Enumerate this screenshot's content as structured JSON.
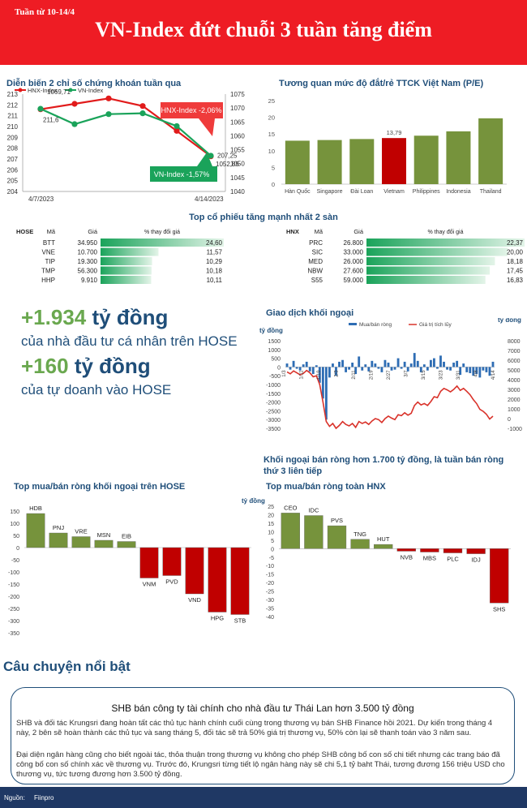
{
  "header": {
    "week": "Tuần từ 10-14/4",
    "title": "VN-Index đứt chuỗi 3 tuần tăng điểm",
    "bg": "#ee1c24"
  },
  "index_chart": {
    "title": "Diễn biến 2 chỉ số chứng khoán tuần qua",
    "legend": [
      "HNX-Index",
      "VN-Index"
    ],
    "colors": [
      "#e11b1b",
      "#1aa35a"
    ],
    "callout_hnx": "HNX-Index -2,06%",
    "callout_vn": "VN-Index -1,57%",
    "date_start": "4/7/2023",
    "date_end": "4/14/2023"
  },
  "pe_chart": {
    "title": "Tương quan mức độ đắt/rẻ TTCK Việt Nam (P/E)",
    "vietnam_label": "13,79"
  },
  "top_stocks": {
    "title": "Top cổ phiếu tăng mạnh nhất 2 sàn",
    "hose": {
      "exchange": "HOSE",
      "col_code": "Mã",
      "col_price": "Giá",
      "col_change": "% thay đổi giá",
      "rows": [
        {
          "code": "BTT",
          "price": "34.950",
          "change": "24,60",
          "pct": 24.6
        },
        {
          "code": "VNE",
          "price": "10.700",
          "change": "11,57",
          "pct": 11.57
        },
        {
          "code": "TIP",
          "price": "19.300",
          "change": "10,29",
          "pct": 10.29
        },
        {
          "code": "TMP",
          "price": "56.300",
          "change": "10,18",
          "pct": 10.18
        },
        {
          "code": "HHP",
          "price": "9.910",
          "change": "10,11",
          "pct": 10.11
        }
      ]
    },
    "hnx": {
      "exchange": "HNX",
      "col_code": "Mã",
      "col_price": "Giá",
      "col_change": "% thay đổi giá",
      "rows": [
        {
          "code": "PRC",
          "price": "26.800",
          "change": "22,37",
          "pct": 22.37
        },
        {
          "code": "SIC",
          "price": "33.000",
          "change": "20,00",
          "pct": 20.0
        },
        {
          "code": "MED",
          "price": "26.000",
          "change": "18,18",
          "pct": 18.18
        },
        {
          "code": "NBW",
          "price": "27.600",
          "change": "17,45",
          "pct": 17.45
        },
        {
          "code": "S55",
          "price": "59.000",
          "change": "16,83",
          "pct": 16.83
        }
      ]
    }
  },
  "highlights": {
    "amount1": "+1.934",
    "unit1": "tỷ đồng",
    "desc1": "của nhà đầu tư cá nhân trên HOSE",
    "amount2": "+160",
    "unit2": "tỷ đồng",
    "desc2": "của tự doanh vào HOSE"
  },
  "foreign_chart": {
    "title": "Giao dịch khối ngoại",
    "unit_left": "tỷ đồng",
    "unit_right": "tỷ đồng",
    "legend_bar": "Mua/bán ròng",
    "legend_line": "Giá trị tích lũy",
    "bar_color": "#2e6db4",
    "line_color": "#d9322a",
    "caption": "Khối ngoại bán ròng hơn 1.700 tỷ đồng, là tuần bán ròng thứ 3 liên tiếp"
  },
  "hose_foreign": {
    "title": "Top mua/bán ròng khối ngoại trên HOSE"
  },
  "hnx_foreign": {
    "title": "Top mua/bán ròng toàn HNX",
    "unit": "tỷ đồng"
  },
  "story": {
    "heading": "Câu chuyện nổi bật",
    "title": "SHB bán công ty tài chính cho nhà đầu tư Thái Lan hơn 3.500 tỷ đồng",
    "p1": "SHB và đối tác Krungsri đang hoàn tất các thủ tục hành chính cuối cùng trong thương vụ bán SHB Finance hồi 2021. Dự kiến trong tháng 4 này, 2 bên sẽ hoàn thành các thủ tục và sang tháng 5, đối tác sẽ trả 50% giá trị thương vụ, 50% còn lại sẽ thanh toán vào 3 năm sau.",
    "p2": "Đại diện ngân hàng cũng cho biết ngoài tác, thỏa thuận trong thương vụ không cho phép SHB công bố con số chi tiết nhưng các trang báo đã công bố con số chính xác về thương vụ. Trước đó, Krungsri từng tiết lộ ngân hàng này sẽ chi 5,1 tỷ baht Thái, tương đương 156 triệu USD cho thương vụ, tức tương đương hơn 3.500 tỷ đồng."
  },
  "footer": {
    "source_label": "Nguồn:",
    "source": "Fiinpro"
  },
  "chart_data": [
    {
      "type": "line",
      "title": "Diễn biến 2 chỉ số chứng khoán tuần qua",
      "x": [
        "4/7/2023",
        "4/10/2023",
        "4/11/2023",
        "4/12/2023",
        "4/13/2023",
        "4/14/2023"
      ],
      "series": [
        {
          "name": "HNX-Index",
          "axis": "left",
          "values": [
            211.6,
            212.1,
            212.6,
            211.9,
            209.6,
            207.25
          ],
          "labels": [
            "211,6",
            "",
            "",
            "",
            "",
            "207,25"
          ]
        },
        {
          "name": "VN-Index",
          "axis": "right",
          "values": [
            1069.71,
            1064.2,
            1067.8,
            1068.1,
            1063.5,
            1052.85
          ],
          "labels": [
            "1069,71",
            "",
            "",
            "",
            "",
            "1052,85"
          ]
        }
      ],
      "ylim_left": [
        204,
        213
      ],
      "yticks_left": [
        204,
        205,
        206,
        207,
        208,
        209,
        210,
        211,
        212,
        213
      ],
      "ylim_right": [
        1040,
        1075
      ],
      "yticks_right": [
        1040,
        1045,
        1050,
        1055,
        1060,
        1065,
        1070,
        1075
      ]
    },
    {
      "type": "bar",
      "title": "Tương quan mức độ đắt/rẻ TTCK Việt Nam (P/E)",
      "categories": [
        "Hàn Quốc",
        "Singapore",
        "Đài Loan",
        "Vietnam",
        "Philippines",
        "Indonesia",
        "Thailand"
      ],
      "values": [
        13.0,
        13.2,
        13.5,
        13.79,
        14.5,
        15.8,
        19.7
      ],
      "highlight": "Vietnam",
      "ylim": [
        0,
        25
      ],
      "yticks": [
        0,
        5,
        10,
        15,
        20,
        25
      ]
    },
    {
      "type": "bar",
      "title": "Giao dịch khối ngoại",
      "x_labels": [
        "1/3",
        "1/11",
        "1/19",
        "2/3",
        "2/11",
        "2/19",
        "2/27",
        "3/7",
        "3/15",
        "3/23",
        "3/31",
        "4/8",
        "4/14"
      ],
      "series": [
        {
          "name": "Mua/bán ròng",
          "type": "bar",
          "axis": "left",
          "values": [
            200,
            -150,
            350,
            -100,
            -200,
            150,
            300,
            -250,
            -400,
            100,
            -900,
            -1800,
            -3000,
            -600,
            200,
            -500,
            300,
            400,
            -300,
            -150,
            250,
            -400,
            600,
            -200,
            150,
            -250,
            350,
            200,
            -100,
            -300,
            400,
            250,
            -200,
            -150,
            500,
            -100,
            300,
            -250,
            200,
            800,
            350,
            -300,
            150,
            -200,
            400,
            500,
            -100,
            650,
            300,
            -150,
            -200,
            250,
            350,
            -450,
            200,
            -300,
            -350,
            -500,
            -400,
            -600,
            -200,
            -300,
            -500,
            300
          ]
        },
        {
          "name": "Giá trị tích lũy",
          "type": "line",
          "axis": "right",
          "values": [
            4800,
            4600,
            4900,
            4700,
            4500,
            4650,
            4950,
            4700,
            4300,
            4400,
            3500,
            1700,
            -300,
            -800,
            -500,
            -1000,
            -700,
            -300,
            -600,
            -750,
            -500,
            -900,
            -300,
            -500,
            -350,
            -600,
            -250,
            0,
            -100,
            -400,
            0,
            250,
            50,
            -100,
            400,
            300,
            600,
            350,
            550,
            1350,
            1700,
            1400,
            1550,
            1350,
            1750,
            2250,
            2150,
            2800,
            3100,
            2950,
            2750,
            3000,
            3350,
            2900,
            3100,
            2800,
            2450,
            1950,
            1550,
            950,
            750,
            450,
            -50,
            250
          ]
        }
      ],
      "ylim_left": [
        -3500,
        1500
      ],
      "yticks_left": [
        1500,
        1000,
        500,
        0,
        -500,
        -1000,
        -1500,
        -2000,
        -2500,
        -3000,
        -3500
      ],
      "ylim_right": [
        -1000,
        8000
      ],
      "yticks_right": [
        8000,
        7000,
        6000,
        5000,
        4000,
        3000,
        2000,
        1000,
        0,
        -1000
      ]
    },
    {
      "type": "bar",
      "title": "Top mua/bán ròng khối ngoại trên HOSE",
      "categories": [
        "HDB",
        "PNJ",
        "VRE",
        "MSN",
        "EIB",
        "VNM",
        "PVD",
        "VND",
        "HPG",
        "STB"
      ],
      "values": [
        140,
        60,
        45,
        30,
        25,
        -125,
        -115,
        -190,
        -265,
        -275
      ],
      "ylim": [
        -350,
        150
      ],
      "yticks": [
        150,
        100,
        50,
        0,
        -50,
        -100,
        -150,
        -200,
        -250,
        -300,
        -350
      ]
    },
    {
      "type": "bar",
      "title": "Top mua/bán ròng toàn HNX",
      "categories": [
        "CEO",
        "IDC",
        "PVS",
        "TNG",
        "HUT",
        "NVB",
        "MBS",
        "PLC",
        "IDJ",
        "SHS"
      ],
      "values": [
        21,
        19.5,
        13.5,
        5.5,
        2.5,
        -1.5,
        -2,
        -2.5,
        -3,
        -32
      ],
      "ylim": [
        -40,
        25
      ],
      "yticks": [
        25,
        20,
        15,
        10,
        5,
        0,
        -5,
        -10,
        -15,
        -20,
        -25,
        -30,
        -35,
        -40
      ]
    }
  ]
}
